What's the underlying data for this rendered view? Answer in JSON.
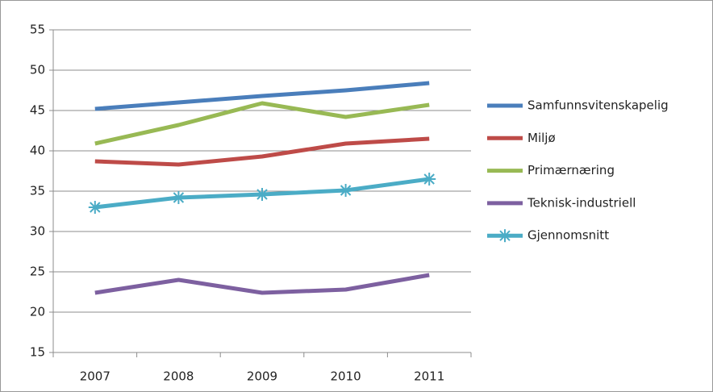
{
  "chart_data": {
    "type": "line",
    "categories": [
      "2007",
      "2008",
      "2009",
      "2010",
      "2011"
    ],
    "series": [
      {
        "name": "Samfunnsvitenskapelig",
        "color": "#4a7ebb",
        "values": [
          45.2,
          46.0,
          46.8,
          47.5,
          48.4
        ]
      },
      {
        "name": "Miljø",
        "color": "#be4b48",
        "values": [
          38.7,
          38.3,
          39.3,
          40.9,
          41.5
        ]
      },
      {
        "name": "Primærnæring",
        "color": "#98b954",
        "values": [
          40.9,
          43.2,
          45.9,
          44.2,
          45.7
        ]
      },
      {
        "name": "Teknisk-industriell",
        "color": "#7d60a0",
        "values": [
          22.4,
          24.0,
          22.4,
          22.8,
          24.6
        ]
      },
      {
        "name": "Gjennomsnitt",
        "color": "#4bacc6",
        "values": [
          33.0,
          34.2,
          34.6,
          35.1,
          36.5
        ],
        "marker": "asterisk"
      }
    ],
    "ylim": [
      15,
      55
    ],
    "yticks": [
      15,
      20,
      25,
      30,
      35,
      40,
      45,
      50,
      55
    ],
    "grid": true,
    "legend": "right"
  }
}
